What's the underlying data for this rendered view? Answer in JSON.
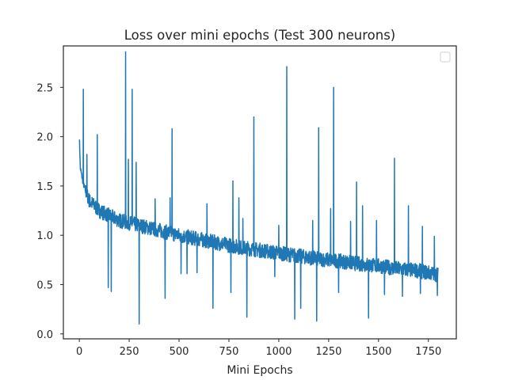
{
  "chart_data": {
    "type": "line",
    "title": "Loss over mini epochs (Test 300 neurons)",
    "xlabel": "Mini Epochs",
    "ylabel": "",
    "xlim": [
      -80,
      1890
    ],
    "ylim": [
      -0.05,
      2.92
    ],
    "x_ticks": [
      0,
      250,
      500,
      750,
      1000,
      1250,
      1500,
      1750
    ],
    "y_ticks": [
      0.0,
      0.5,
      1.0,
      1.5,
      2.0,
      2.5
    ],
    "x_tick_labels": [
      "0",
      "250",
      "500",
      "750",
      "1000",
      "1250",
      "1500",
      "1750"
    ],
    "y_tick_labels": [
      "0.0",
      "0.5",
      "1.0",
      "1.5",
      "2.0",
      "2.5"
    ],
    "grid": false,
    "legend": {
      "position": "top-right",
      "entries": []
    },
    "n_points": 1800,
    "line_color": "#1f77b4",
    "series": [
      {
        "baseline": [
          [
            0,
            2.0
          ],
          [
            5,
            1.68
          ],
          [
            20,
            1.52
          ],
          [
            50,
            1.35
          ],
          [
            100,
            1.25
          ],
          [
            200,
            1.15
          ],
          [
            300,
            1.1
          ],
          [
            400,
            1.05
          ],
          [
            500,
            1.0
          ],
          [
            600,
            0.96
          ],
          [
            700,
            0.92
          ],
          [
            800,
            0.88
          ],
          [
            900,
            0.85
          ],
          [
            1000,
            0.82
          ],
          [
            1100,
            0.79
          ],
          [
            1200,
            0.76
          ],
          [
            1300,
            0.74
          ],
          [
            1400,
            0.71
          ],
          [
            1500,
            0.69
          ],
          [
            1600,
            0.66
          ],
          [
            1700,
            0.64
          ],
          [
            1800,
            0.6
          ]
        ],
        "spikes_up": [
          [
            20,
            2.48
          ],
          [
            38,
            1.82
          ],
          [
            90,
            2.02
          ],
          [
            170,
            1.15
          ],
          [
            232,
            2.86
          ],
          [
            246,
            1.77
          ],
          [
            265,
            2.48
          ],
          [
            285,
            1.74
          ],
          [
            380,
            1.37
          ],
          [
            455,
            1.38
          ],
          [
            465,
            2.08
          ],
          [
            640,
            1.32
          ],
          [
            770,
            1.55
          ],
          [
            800,
            1.38
          ],
          [
            820,
            1.17
          ],
          [
            840,
            1.52
          ],
          [
            875,
            2.2
          ],
          [
            1000,
            1.1
          ],
          [
            1040,
            2.71
          ],
          [
            1110,
            1.27
          ],
          [
            1170,
            1.15
          ],
          [
            1200,
            2.09
          ],
          [
            1260,
            1.27
          ],
          [
            1275,
            2.5
          ],
          [
            1360,
            1.14
          ],
          [
            1390,
            1.54
          ],
          [
            1420,
            1.3
          ],
          [
            1490,
            1.15
          ],
          [
            1580,
            1.78
          ],
          [
            1650,
            1.3
          ],
          [
            1720,
            1.09
          ],
          [
            1780,
            0.99
          ]
        ],
        "spikes_down": [
          [
            145,
            0.47
          ],
          [
            160,
            0.43
          ],
          [
            300,
            0.1
          ],
          [
            430,
            0.36
          ],
          [
            510,
            0.61
          ],
          [
            540,
            0.61
          ],
          [
            590,
            0.62
          ],
          [
            670,
            0.26
          ],
          [
            760,
            0.42
          ],
          [
            840,
            0.17
          ],
          [
            980,
            0.58
          ],
          [
            1080,
            0.15
          ],
          [
            1110,
            0.26
          ],
          [
            1190,
            0.13
          ],
          [
            1300,
            0.42
          ],
          [
            1450,
            0.16
          ],
          [
            1530,
            0.4
          ],
          [
            1620,
            0.38
          ],
          [
            1710,
            0.41
          ],
          [
            1795,
            0.39
          ]
        ]
      }
    ]
  }
}
